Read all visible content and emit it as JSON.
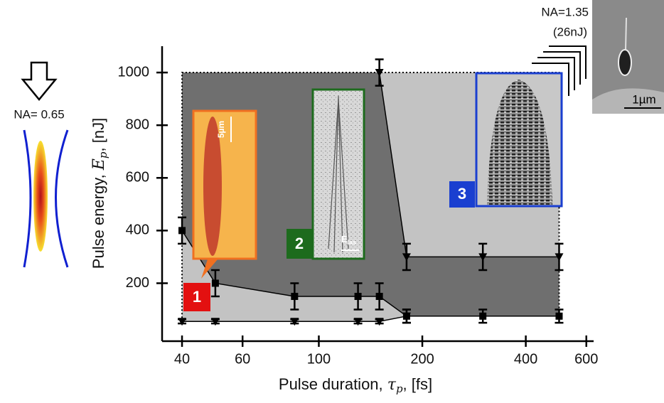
{
  "chart_data": {
    "type": "line",
    "x_label": [
      "Pulse duration, ",
      "τ",
      "p",
      ", [fs]"
    ],
    "y_label": [
      "Pulse energy, ",
      "E",
      "p",
      ", [nJ]"
    ],
    "xscale": "log",
    "xlim": [
      35,
      630
    ],
    "xticks": [
      40,
      60,
      100,
      200,
      400,
      600
    ],
    "ylim": [
      -20,
      1100
    ],
    "yticks": [
      200,
      400,
      600,
      800,
      1000
    ],
    "region_colors": {
      "light": "#c3c3c3",
      "dark": "#6f6f6f"
    },
    "series": [
      {
        "marker": "square",
        "color": "#000000",
        "x": [
          40,
          50,
          85,
          130,
          150,
          180,
          300,
          500
        ],
        "values": [
          400,
          200,
          150,
          150,
          150,
          75,
          75,
          75
        ],
        "errors": [
          50,
          50,
          50,
          50,
          50,
          25,
          25,
          25
        ]
      },
      {
        "marker": "triangle-down",
        "color": "#000000",
        "x": [
          40,
          50,
          85,
          130,
          150,
          180
        ],
        "values": [
          55,
          55,
          55,
          55,
          55,
          75
        ],
        "errors": [
          8,
          8,
          8,
          8,
          8,
          25
        ]
      },
      {
        "marker": "triangle-down",
        "color": "#000000",
        "x": [
          150,
          180,
          300,
          500
        ],
        "values": [
          1000,
          300,
          300,
          300
        ],
        "errors": [
          50,
          50,
          50,
          50
        ]
      }
    ],
    "annotations": {
      "na_left": "NA= 0.65",
      "na_right": "NA=1.35",
      "energy_right": "(26nJ)",
      "scale_right": "1µm",
      "scale_inset1": "5µm",
      "field": [
        "E",
        "las"
      ],
      "regions": [
        "1",
        "2",
        "3"
      ]
    }
  }
}
